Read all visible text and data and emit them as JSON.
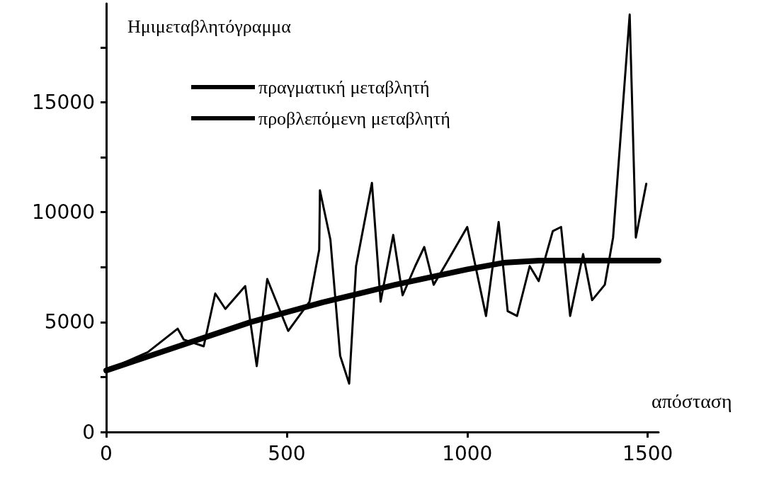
{
  "chart_data": {
    "type": "line",
    "xlabel": "απόσταση",
    "ylabel": "Ημιμεταβλητόγραμμα",
    "xlim": [
      0,
      1530
    ],
    "xticks": [
      0,
      500,
      1000,
      1500
    ],
    "ylim": [
      0,
      19500
    ],
    "yticks": [
      0,
      {
        "value": 2500,
        "label": null
      },
      5000,
      {
        "value": 7500,
        "label": null
      },
      10000,
      {
        "value": 12500,
        "label": null
      },
      15000,
      {
        "value": 17500,
        "label": null
      }
    ],
    "grid": false,
    "legend": "top",
    "marker": "none",
    "series": [
      {
        "name": "πραγματική μεταβλητή",
        "color": "#000000",
        "x": [
          0,
          115,
          198,
          215,
          270,
          302,
          330,
          385,
          417,
          446,
          504,
          563,
          590,
          592,
          621,
          648,
          673,
          692,
          736,
          760,
          795,
          821,
          856,
          881,
          907,
          942,
          1000,
          1052,
          1087,
          1112,
          1138,
          1173,
          1198,
          1237,
          1260,
          1285,
          1321,
          1346,
          1381,
          1404,
          1450,
          1467,
          1496
        ],
        "values": [
          2800,
          3630,
          4700,
          4200,
          3900,
          6300,
          5600,
          6640,
          3000,
          6960,
          4600,
          5930,
          8300,
          11000,
          8750,
          3470,
          2200,
          7550,
          11340,
          5930,
          8970,
          6220,
          7550,
          8420,
          6700,
          7680,
          9330,
          5280,
          9560,
          5500,
          5280,
          7550,
          6870,
          9140,
          9330,
          5280,
          8100,
          6000,
          6700,
          8850,
          19000,
          8850,
          11300
        ]
      },
      {
        "name": "προβλεπόμενη μεταβλητή",
        "color": "#000000",
        "x": [
          0,
          200,
          400,
          600,
          800,
          1000,
          1100,
          1200,
          1530
        ],
        "values": [
          2800,
          3900,
          5000,
          5900,
          6700,
          7400,
          7700,
          7800,
          7800
        ]
      }
    ]
  }
}
